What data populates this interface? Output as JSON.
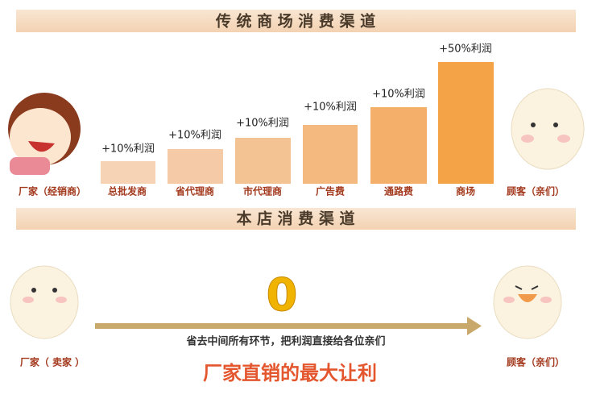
{
  "traditional": {
    "title": "传 统 商 场 消 费 渠 道",
    "start": "厂家（经销商）",
    "steps": [
      {
        "name": "总批发商",
        "profit": "+10%利润"
      },
      {
        "name": "省代理商",
        "profit": "+10%利润"
      },
      {
        "name": "市代理商",
        "profit": "+10%利润"
      },
      {
        "name": "广告费",
        "profit": "+10%利润"
      },
      {
        "name": "通路费",
        "profit": "+10%利润"
      },
      {
        "name": "商场",
        "profit": "+50%利润"
      }
    ],
    "end": "顾客（亲们）"
  },
  "store": {
    "title": "本 店 消 费 渠 道",
    "zero": "0",
    "arrow_text": "省去中间所有环节，把利润直接给各位亲们",
    "start": "厂家（ 卖家 ）",
    "end": "顾客（亲们）",
    "slogan": "厂家直销的最大让利"
  }
}
